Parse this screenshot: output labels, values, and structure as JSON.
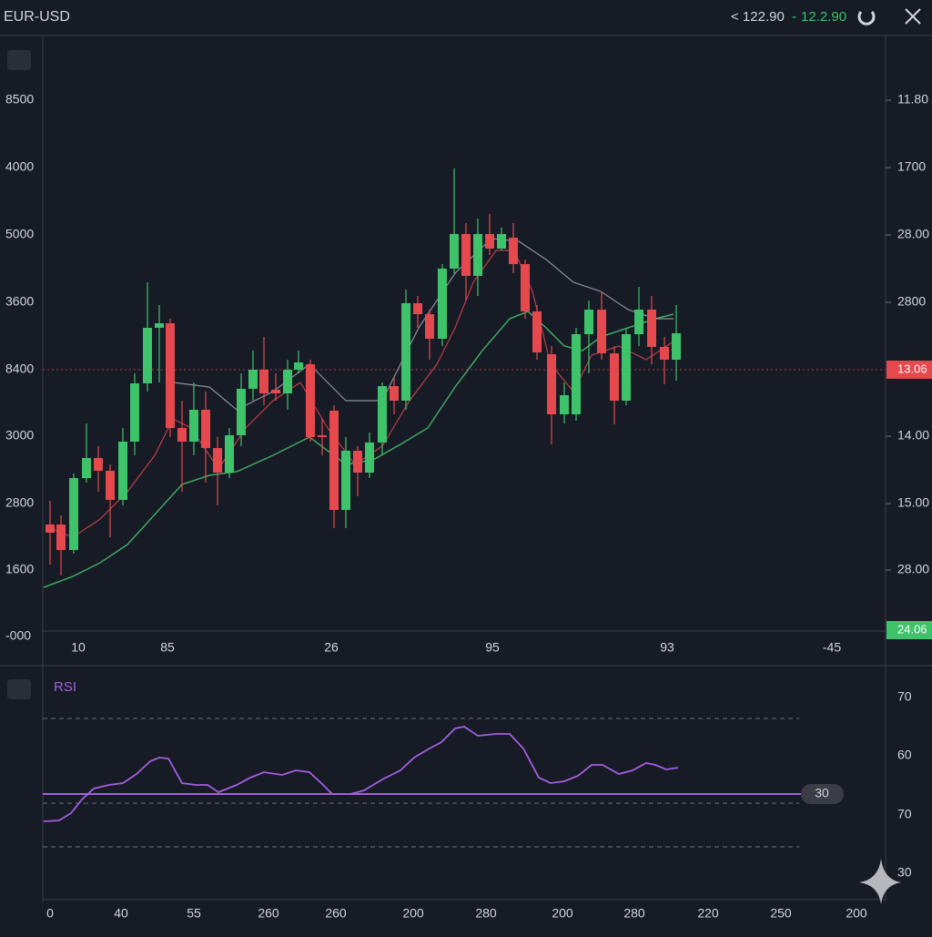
{
  "header": {
    "symbol": "EUR-USD",
    "bid": "< 122.90",
    "separator": "-",
    "ask": "12.2.90"
  },
  "price_pane": {
    "left_axis": [
      "8500",
      "4000",
      "5000",
      "3600",
      "8400",
      "3000",
      "2800",
      "1600",
      "-000"
    ],
    "right_axis": [
      "11.80",
      "1700",
      "28.00",
      "2800",
      "14.00",
      "15.00",
      "28.00"
    ],
    "current_price": "13.06",
    "last_tag": "24.06",
    "x_axis": [
      "10",
      "85",
      "26",
      "95",
      "93",
      "-45"
    ]
  },
  "rsi_pane": {
    "title": "RSI",
    "level_badge": "30",
    "right_axis": [
      "70",
      "60",
      "70",
      "30"
    ],
    "x_axis": [
      "0",
      "40",
      "55",
      "260",
      "260",
      "200",
      "280",
      "200",
      "280",
      "220",
      "250",
      "200"
    ]
  }
}
